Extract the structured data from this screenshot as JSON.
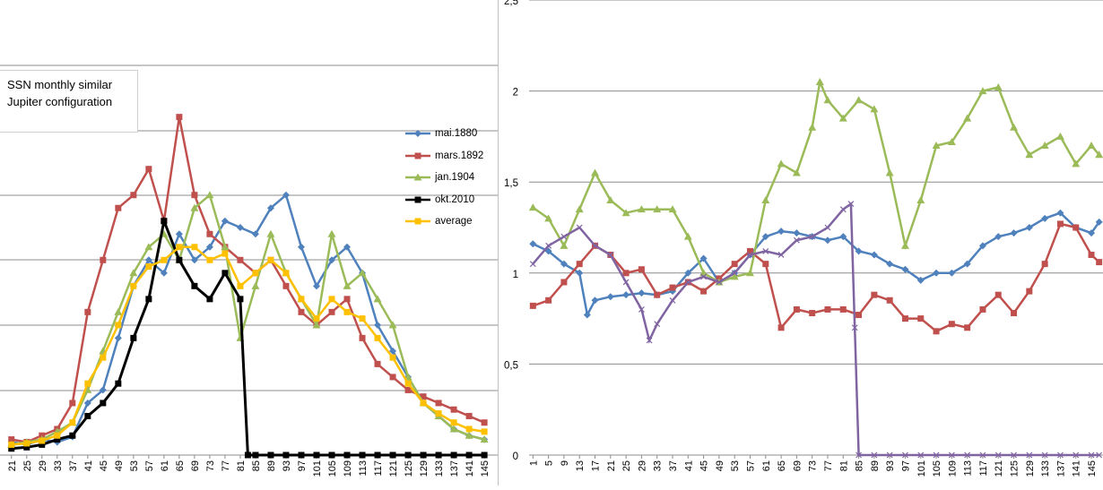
{
  "left_chart": {
    "title": "SSN monthly similar Jupiter configuration",
    "legend": [
      {
        "name": "mai.1880",
        "color": "#4f81bd",
        "marker": "diamond"
      },
      {
        "name": "mars.1892",
        "color": "#c0504d",
        "marker": "square"
      },
      {
        "name": "jan.1904",
        "color": "#9bbb59",
        "marker": "triangle"
      },
      {
        "name": "okt.2010",
        "color": "#000000",
        "marker": "square"
      },
      {
        "name": "average",
        "color": "#ffc000",
        "marker": "square"
      }
    ]
  },
  "chart_data": [
    {
      "type": "line",
      "title": "SSN monthly similar Jupiter configuration",
      "x_tick_labels": [
        "21",
        "25",
        "29",
        "33",
        "37",
        "41",
        "45",
        "49",
        "53",
        "57",
        "61",
        "65",
        "69",
        "73",
        "77",
        "81",
        "85",
        "89",
        "93",
        "97",
        "101",
        "105",
        "109",
        "113",
        "117",
        "121",
        "125",
        "129",
        "133",
        "137",
        "141",
        "145"
      ],
      "y_tick_labels": [],
      "grid": true,
      "legend_position": "right",
      "series": [
        {
          "name": "mai.1880",
          "color": "#4f81bd",
          "x": [
            21,
            25,
            29,
            33,
            37,
            41,
            45,
            49,
            53,
            57,
            61,
            65,
            69,
            73,
            77,
            81,
            85,
            89,
            93,
            97,
            101,
            105,
            109,
            113,
            117,
            121,
            125,
            129,
            133,
            137,
            141,
            145
          ],
          "values": [
            10,
            8,
            12,
            10,
            14,
            40,
            50,
            90,
            130,
            150,
            140,
            170,
            150,
            160,
            180,
            175,
            170,
            190,
            200,
            160,
            130,
            150,
            160,
            140,
            100,
            80,
            60,
            40,
            30,
            20,
            15,
            12
          ]
        },
        {
          "name": "mars.1892",
          "color": "#c0504d",
          "x": [
            21,
            25,
            29,
            33,
            37,
            41,
            45,
            49,
            53,
            57,
            61,
            65,
            69,
            73,
            77,
            81,
            85,
            89,
            93,
            97,
            101,
            105,
            109,
            113,
            117,
            121,
            125,
            129,
            133,
            137,
            141,
            145
          ],
          "values": [
            12,
            10,
            15,
            20,
            40,
            110,
            150,
            190,
            200,
            220,
            180,
            260,
            200,
            170,
            160,
            150,
            140,
            150,
            130,
            110,
            100,
            110,
            120,
            90,
            70,
            60,
            50,
            45,
            40,
            35,
            30,
            25
          ]
        },
        {
          "name": "jan.1904",
          "color": "#9bbb59",
          "x": [
            21,
            25,
            29,
            33,
            37,
            41,
            45,
            49,
            53,
            57,
            61,
            65,
            69,
            73,
            77,
            81,
            85,
            89,
            93,
            97,
            101,
            105,
            109,
            113,
            117,
            121,
            125,
            129,
            133,
            137,
            141,
            145
          ],
          "values": [
            8,
            10,
            12,
            18,
            25,
            50,
            80,
            110,
            140,
            160,
            170,
            150,
            190,
            200,
            160,
            90,
            130,
            170,
            140,
            120,
            100,
            170,
            130,
            140,
            120,
            100,
            60,
            40,
            30,
            20,
            15,
            12
          ]
        },
        {
          "name": "okt.2010",
          "color": "#000000",
          "x": [
            21,
            25,
            29,
            33,
            37,
            41,
            45,
            49,
            53,
            57,
            61,
            65,
            69,
            73,
            77,
            81,
            83,
            85,
            89,
            93,
            97,
            101,
            105,
            109,
            113,
            117,
            121,
            125,
            129,
            133,
            137,
            141,
            145
          ],
          "values": [
            5,
            6,
            8,
            12,
            15,
            30,
            40,
            55,
            90,
            120,
            180,
            150,
            130,
            120,
            140,
            120,
            0,
            0,
            0,
            0,
            0,
            0,
            0,
            0,
            0,
            0,
            0,
            0,
            0,
            0,
            0,
            0,
            0
          ]
        },
        {
          "name": "average",
          "color": "#ffc000",
          "x": [
            21,
            25,
            29,
            33,
            37,
            41,
            45,
            49,
            53,
            57,
            61,
            65,
            69,
            73,
            77,
            81,
            85,
            89,
            93,
            97,
            101,
            105,
            109,
            113,
            117,
            121,
            125,
            129,
            133,
            137,
            141,
            145
          ],
          "values": [
            8,
            9,
            11,
            15,
            25,
            55,
            75,
            100,
            130,
            145,
            150,
            160,
            160,
            150,
            155,
            130,
            140,
            150,
            140,
            120,
            105,
            120,
            110,
            105,
            90,
            75,
            55,
            40,
            32,
            25,
            20,
            18
          ]
        }
      ]
    },
    {
      "type": "line",
      "title": "",
      "x_tick_labels": [
        "1",
        "5",
        "9",
        "13",
        "17",
        "21",
        "25",
        "29",
        "33",
        "37",
        "41",
        "45",
        "49",
        "53",
        "57",
        "61",
        "65",
        "69",
        "73",
        "77",
        "81",
        "85",
        "89",
        "93",
        "97",
        "101",
        "105",
        "109",
        "113",
        "117",
        "121",
        "125",
        "129",
        "133",
        "137",
        "141",
        "145"
      ],
      "y_tick_labels": [
        "0",
        "0,5",
        "1",
        "1,5",
        "2",
        "2,5"
      ],
      "ylim": [
        0,
        2.5
      ],
      "grid": true,
      "series": [
        {
          "color": "#4f81bd",
          "x": [
            1,
            5,
            9,
            13,
            15,
            17,
            21,
            25,
            29,
            33,
            37,
            41,
            45,
            49,
            53,
            57,
            61,
            65,
            69,
            73,
            77,
            81,
            85,
            89,
            93,
            97,
            101,
            105,
            109,
            113,
            117,
            121,
            125,
            129,
            133,
            137,
            141,
            145,
            147
          ],
          "values": [
            1.16,
            1.12,
            1.05,
            1.0,
            0.77,
            0.85,
            0.87,
            0.88,
            0.89,
            0.88,
            0.9,
            1.0,
            1.08,
            0.95,
            1.0,
            1.1,
            1.2,
            1.23,
            1.22,
            1.2,
            1.18,
            1.2,
            1.12,
            1.1,
            1.05,
            1.02,
            0.96,
            1.0,
            1.0,
            1.05,
            1.15,
            1.2,
            1.22,
            1.25,
            1.3,
            1.33,
            1.25,
            1.22,
            1.28
          ]
        },
        {
          "color": "#c0504d",
          "x": [
            1,
            5,
            9,
            13,
            17,
            21,
            25,
            29,
            33,
            37,
            41,
            45,
            49,
            53,
            57,
            61,
            65,
            69,
            73,
            77,
            81,
            85,
            89,
            93,
            97,
            101,
            105,
            109,
            113,
            117,
            121,
            125,
            129,
            133,
            137,
            141,
            145,
            147
          ],
          "values": [
            0.82,
            0.85,
            0.95,
            1.05,
            1.15,
            1.1,
            1.0,
            1.02,
            0.88,
            0.92,
            0.95,
            0.9,
            0.97,
            1.05,
            1.12,
            1.05,
            0.7,
            0.8,
            0.78,
            0.8,
            0.8,
            0.77,
            0.88,
            0.85,
            0.75,
            0.75,
            0.68,
            0.72,
            0.7,
            0.8,
            0.88,
            0.78,
            0.9,
            1.05,
            1.27,
            1.25,
            1.1,
            1.06
          ]
        },
        {
          "color": "#9bbb59",
          "x": [
            1,
            5,
            9,
            13,
            17,
            21,
            25,
            29,
            33,
            37,
            41,
            45,
            49,
            53,
            57,
            61,
            65,
            69,
            73,
            75,
            77,
            81,
            85,
            89,
            93,
            97,
            101,
            105,
            109,
            113,
            117,
            121,
            125,
            129,
            133,
            137,
            141,
            145,
            147
          ],
          "values": [
            1.36,
            1.3,
            1.15,
            1.35,
            1.55,
            1.4,
            1.33,
            1.35,
            1.35,
            1.35,
            1.2,
            1.0,
            0.95,
            0.98,
            1.0,
            1.4,
            1.6,
            1.55,
            1.8,
            2.05,
            1.95,
            1.85,
            1.95,
            1.9,
            1.55,
            1.15,
            1.4,
            1.7,
            1.72,
            1.85,
            2.0,
            2.02,
            1.8,
            1.65,
            1.7,
            1.75,
            1.6,
            1.7,
            1.65
          ]
        },
        {
          "color": "#8064a2",
          "x": [
            1,
            5,
            9,
            13,
            17,
            21,
            25,
            29,
            31,
            33,
            37,
            41,
            45,
            49,
            53,
            57,
            61,
            65,
            69,
            73,
            77,
            81,
            83,
            84,
            85,
            89,
            93,
            97,
            101,
            105,
            109,
            113,
            117,
            121,
            125,
            129,
            133,
            137,
            141,
            145,
            147
          ],
          "values": [
            1.05,
            1.15,
            1.2,
            1.25,
            1.15,
            1.1,
            0.95,
            0.8,
            0.63,
            0.72,
            0.85,
            0.95,
            0.98,
            0.95,
            1.0,
            1.1,
            1.12,
            1.1,
            1.18,
            1.2,
            1.25,
            1.35,
            1.38,
            0.7,
            0,
            0,
            0,
            0,
            0,
            0,
            0,
            0,
            0,
            0,
            0,
            0,
            0,
            0,
            0,
            0,
            0
          ]
        }
      ]
    }
  ]
}
